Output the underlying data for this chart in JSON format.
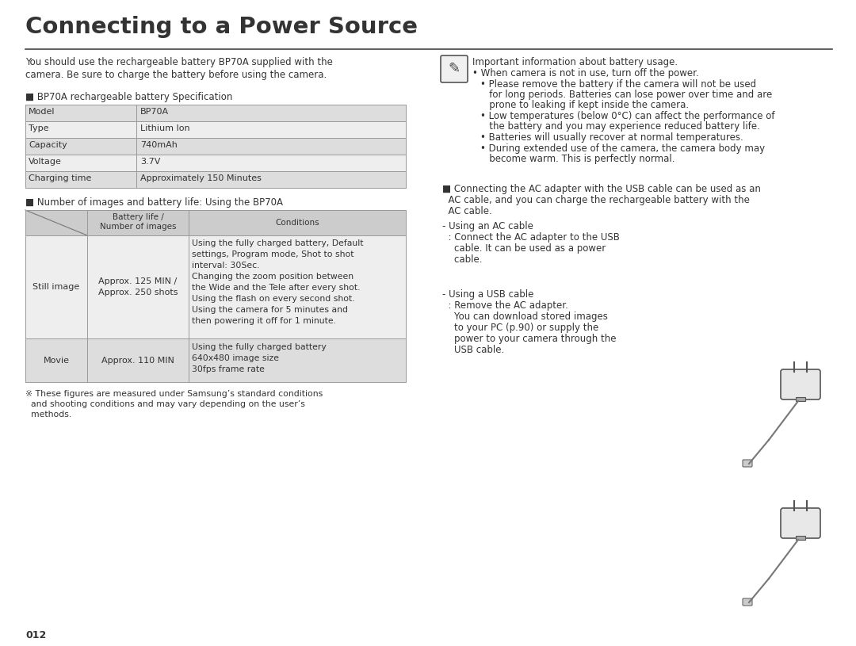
{
  "title": "Connecting to a Power Source",
  "bg_color": "#ffffff",
  "text_color": "#333333",
  "table_line_color": "#999999",
  "table_header_bg": "#cccccc",
  "table_row_bg_dark": "#dddddd",
  "table_row_bg_light": "#eeeeee",
  "intro_line1": "You should use the rechargeable battery BP70A supplied with the",
  "intro_line2": "camera. Be sure to charge the battery before using the camera.",
  "spec_title": "■ BP70A rechargeable battery Specification",
  "spec_rows": [
    [
      "Model",
      "BP70A"
    ],
    [
      "Type",
      "Lithium Ion"
    ],
    [
      "Capacity",
      "740mAh"
    ],
    [
      "Voltage",
      "3.7V"
    ],
    [
      "Charging time",
      "Approximately 150 Minutes"
    ]
  ],
  "battery_title": "■ Number of images and battery life: Using the BP70A",
  "battery_hdr2": "Battery life /\nNumber of images",
  "battery_hdr3": "Conditions",
  "still_mode": "Still image",
  "still_life": "Approx. 125 MIN /\nApprox. 250 shots",
  "still_cond_lines": [
    "Using the fully charged battery, Default",
    "settings, Program mode, Shot to shot",
    "interval: 30Sec.",
    "Changing the zoom position between",
    "the Wide and the Tele after every shot.",
    "Using the flash on every second shot.",
    "Using the camera for 5 minutes and",
    "then powering it off for 1 minute."
  ],
  "movie_mode": "Movie",
  "movie_life": "Approx. 110 MIN",
  "movie_cond_lines": [
    "Using the fully charged battery",
    "640x480 image size",
    "30fps frame rate"
  ],
  "footnote_lines": [
    "※ These figures are measured under Samsung’s standard conditions",
    "  and shooting conditions and may vary depending on the user’s",
    "  methods."
  ],
  "page_num": "012",
  "note_title": "Important information about battery usage.",
  "note_bullet1": "• When camera is not in use, turn off the power.",
  "note_bullet2_lines": [
    "• Please remove the battery if the camera will not be used",
    "   for long periods. Batteries can lose power over time and are",
    "   prone to leaking if kept inside the camera."
  ],
  "note_bullet3_lines": [
    "• Low temperatures (below 0°C) can affect the performance of",
    "   the battery and you may experience reduced battery life."
  ],
  "note_bullet4": "• Batteries will usually recover at normal temperatures.",
  "note_bullet5_lines": [
    "• During extended use of the camera, the camera body may",
    "   become warm. This is perfectly normal."
  ],
  "ac_title_lines": [
    "■ Connecting the AC adapter with the USB cable can be used as an",
    "  AC cable, and you can charge the rechargeable battery with the",
    "  AC cable."
  ],
  "ac_text_lines": [
    "- Using an AC cable",
    "  : Connect the AC adapter to the USB",
    "    cable. It can be used as a power",
    "    cable."
  ],
  "usb_text_lines": [
    "- Using a USB cable",
    "  : Remove the AC adapter.",
    "    You can download stored images",
    "    to your PC (p.90) or supply the",
    "    power to your camera through the",
    "    USB cable."
  ]
}
